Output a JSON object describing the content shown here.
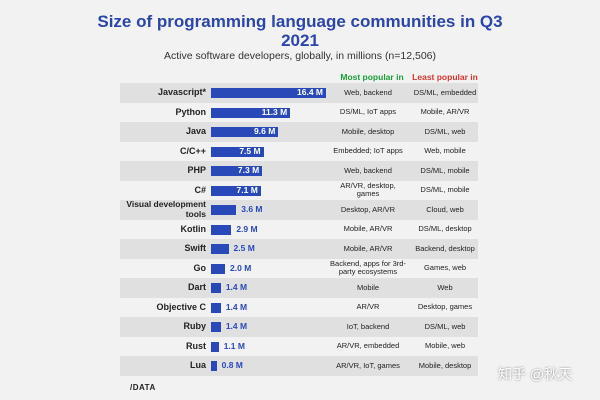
{
  "chart_data": {
    "type": "bar",
    "title_line1": "Size of programming language communities in Q3",
    "title_line2": "2021",
    "subtitle": "Active software developers, globally, in millions (n=12,506)",
    "col_most": "Most popular in",
    "col_least": "Least popular in",
    "xlim": [
      0,
      16.4
    ],
    "rows": [
      {
        "lang": "Javascript*",
        "value": 16.4,
        "label": "16.4 M",
        "most": "Web, backend",
        "least": "DS/ML, embedded"
      },
      {
        "lang": "Python",
        "value": 11.3,
        "label": "11.3 M",
        "most": "DS/ML, IoT apps",
        "least": "Mobile, AR/VR"
      },
      {
        "lang": "Java",
        "value": 9.6,
        "label": "9.6 M",
        "most": "Mobile, desktop",
        "least": "DS/ML, web"
      },
      {
        "lang": "C/C++",
        "value": 7.5,
        "label": "7.5 M",
        "most": "Embedded; IoT apps",
        "least": "Web, mobile"
      },
      {
        "lang": "PHP",
        "value": 7.3,
        "label": "7.3 M",
        "most": "Web, backend",
        "least": "DS/ML, mobile"
      },
      {
        "lang": "C#",
        "value": 7.1,
        "label": "7.1 M",
        "most": "AR/VR, desktop, games",
        "least": "DS/ML, mobile"
      },
      {
        "lang": "Visual development tools",
        "value": 3.6,
        "label": "3.6 M",
        "most": "Desktop, AR/VR",
        "least": "Cloud, web"
      },
      {
        "lang": "Kotlin",
        "value": 2.9,
        "label": "2.9 M",
        "most": "Mobile, AR/VR",
        "least": "DS/ML, desktop"
      },
      {
        "lang": "Swift",
        "value": 2.5,
        "label": "2.5 M",
        "most": "Mobile, AR/VR",
        "least": "Backend, desktop"
      },
      {
        "lang": "Go",
        "value": 2.0,
        "label": "2.0 M",
        "most": "Backend, apps for 3rd-party ecosystems",
        "least": "Games, web"
      },
      {
        "lang": "Dart",
        "value": 1.4,
        "label": "1.4 M",
        "most": "Mobile",
        "least": "Web"
      },
      {
        "lang": "Objective C",
        "value": 1.4,
        "label": "1.4 M",
        "most": "AR/VR",
        "least": "Desktop, games"
      },
      {
        "lang": "Ruby",
        "value": 1.4,
        "label": "1.4 M",
        "most": "IoT, backend",
        "least": "DS/ML, web"
      },
      {
        "lang": "Rust",
        "value": 1.1,
        "label": "1.1 M",
        "most": "AR/VR, embedded",
        "least": "Mobile, web"
      },
      {
        "lang": "Lua",
        "value": 0.8,
        "label": "0.8 M",
        "most": "AR/VR, IoT, games",
        "least": "Mobile, desktop"
      }
    ],
    "colors": {
      "bar": "#2a49b9",
      "title": "#2b45a8",
      "most": "#1b9e3a",
      "least": "#d9342b"
    }
  },
  "footer": {
    "logo": "/DATA",
    "watermark": "知乎 @秋天"
  }
}
